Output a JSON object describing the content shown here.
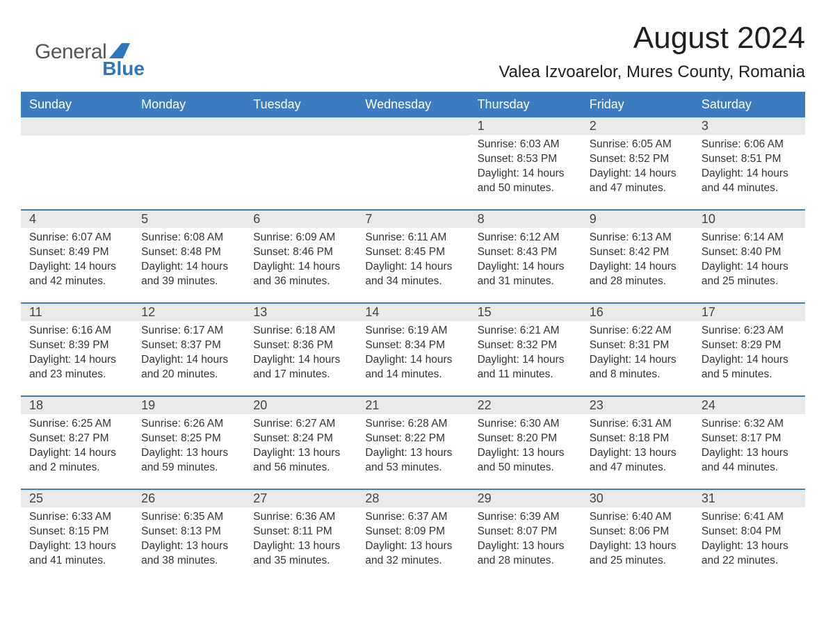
{
  "brand": {
    "general": "General",
    "blue": "Blue",
    "logo_color": "#2f77bb"
  },
  "title": "August 2024",
  "location": "Valea Izvoarelor, Mures County, Romania",
  "colors": {
    "header_bg": "#3d7cc0",
    "header_text": "#ffffff",
    "daynum_bg": "#e9e9e9",
    "week_border": "#3d7cc0",
    "body_text": "#333333",
    "background": "#ffffff"
  },
  "typography": {
    "title_fontsize": 44,
    "location_fontsize": 24,
    "dow_fontsize": 18,
    "daynum_fontsize": 18,
    "body_fontsize": 15.5
  },
  "days_of_week": [
    "Sunday",
    "Monday",
    "Tuesday",
    "Wednesday",
    "Thursday",
    "Friday",
    "Saturday"
  ],
  "labels": {
    "sunrise": "Sunrise:",
    "sunset": "Sunset:",
    "daylight": "Daylight:"
  },
  "weeks": [
    [
      {
        "n": "",
        "empty": true
      },
      {
        "n": "",
        "empty": true
      },
      {
        "n": "",
        "empty": true
      },
      {
        "n": "",
        "empty": true
      },
      {
        "n": "1",
        "sunrise": "6:03 AM",
        "sunset": "8:53 PM",
        "daylight": "14 hours and 50 minutes."
      },
      {
        "n": "2",
        "sunrise": "6:05 AM",
        "sunset": "8:52 PM",
        "daylight": "14 hours and 47 minutes."
      },
      {
        "n": "3",
        "sunrise": "6:06 AM",
        "sunset": "8:51 PM",
        "daylight": "14 hours and 44 minutes."
      }
    ],
    [
      {
        "n": "4",
        "sunrise": "6:07 AM",
        "sunset": "8:49 PM",
        "daylight": "14 hours and 42 minutes."
      },
      {
        "n": "5",
        "sunrise": "6:08 AM",
        "sunset": "8:48 PM",
        "daylight": "14 hours and 39 minutes."
      },
      {
        "n": "6",
        "sunrise": "6:09 AM",
        "sunset": "8:46 PM",
        "daylight": "14 hours and 36 minutes."
      },
      {
        "n": "7",
        "sunrise": "6:11 AM",
        "sunset": "8:45 PM",
        "daylight": "14 hours and 34 minutes."
      },
      {
        "n": "8",
        "sunrise": "6:12 AM",
        "sunset": "8:43 PM",
        "daylight": "14 hours and 31 minutes."
      },
      {
        "n": "9",
        "sunrise": "6:13 AM",
        "sunset": "8:42 PM",
        "daylight": "14 hours and 28 minutes."
      },
      {
        "n": "10",
        "sunrise": "6:14 AM",
        "sunset": "8:40 PM",
        "daylight": "14 hours and 25 minutes."
      }
    ],
    [
      {
        "n": "11",
        "sunrise": "6:16 AM",
        "sunset": "8:39 PM",
        "daylight": "14 hours and 23 minutes."
      },
      {
        "n": "12",
        "sunrise": "6:17 AM",
        "sunset": "8:37 PM",
        "daylight": "14 hours and 20 minutes."
      },
      {
        "n": "13",
        "sunrise": "6:18 AM",
        "sunset": "8:36 PM",
        "daylight": "14 hours and 17 minutes."
      },
      {
        "n": "14",
        "sunrise": "6:19 AM",
        "sunset": "8:34 PM",
        "daylight": "14 hours and 14 minutes."
      },
      {
        "n": "15",
        "sunrise": "6:21 AM",
        "sunset": "8:32 PM",
        "daylight": "14 hours and 11 minutes."
      },
      {
        "n": "16",
        "sunrise": "6:22 AM",
        "sunset": "8:31 PM",
        "daylight": "14 hours and 8 minutes."
      },
      {
        "n": "17",
        "sunrise": "6:23 AM",
        "sunset": "8:29 PM",
        "daylight": "14 hours and 5 minutes."
      }
    ],
    [
      {
        "n": "18",
        "sunrise": "6:25 AM",
        "sunset": "8:27 PM",
        "daylight": "14 hours and 2 minutes."
      },
      {
        "n": "19",
        "sunrise": "6:26 AM",
        "sunset": "8:25 PM",
        "daylight": "13 hours and 59 minutes."
      },
      {
        "n": "20",
        "sunrise": "6:27 AM",
        "sunset": "8:24 PM",
        "daylight": "13 hours and 56 minutes."
      },
      {
        "n": "21",
        "sunrise": "6:28 AM",
        "sunset": "8:22 PM",
        "daylight": "13 hours and 53 minutes."
      },
      {
        "n": "22",
        "sunrise": "6:30 AM",
        "sunset": "8:20 PM",
        "daylight": "13 hours and 50 minutes."
      },
      {
        "n": "23",
        "sunrise": "6:31 AM",
        "sunset": "8:18 PM",
        "daylight": "13 hours and 47 minutes."
      },
      {
        "n": "24",
        "sunrise": "6:32 AM",
        "sunset": "8:17 PM",
        "daylight": "13 hours and 44 minutes."
      }
    ],
    [
      {
        "n": "25",
        "sunrise": "6:33 AM",
        "sunset": "8:15 PM",
        "daylight": "13 hours and 41 minutes."
      },
      {
        "n": "26",
        "sunrise": "6:35 AM",
        "sunset": "8:13 PM",
        "daylight": "13 hours and 38 minutes."
      },
      {
        "n": "27",
        "sunrise": "6:36 AM",
        "sunset": "8:11 PM",
        "daylight": "13 hours and 35 minutes."
      },
      {
        "n": "28",
        "sunrise": "6:37 AM",
        "sunset": "8:09 PM",
        "daylight": "13 hours and 32 minutes."
      },
      {
        "n": "29",
        "sunrise": "6:39 AM",
        "sunset": "8:07 PM",
        "daylight": "13 hours and 28 minutes."
      },
      {
        "n": "30",
        "sunrise": "6:40 AM",
        "sunset": "8:06 PM",
        "daylight": "13 hours and 25 minutes."
      },
      {
        "n": "31",
        "sunrise": "6:41 AM",
        "sunset": "8:04 PM",
        "daylight": "13 hours and 22 minutes."
      }
    ]
  ]
}
